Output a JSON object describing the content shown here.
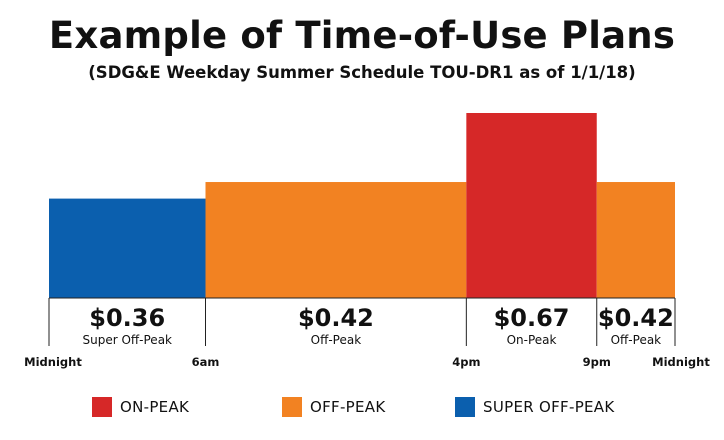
{
  "chart_data": {
    "type": "bar",
    "title": "Example of Time-of-Use Plans",
    "subtitle": "(SDG&E Weekday Summer Schedule TOU-DR1 as of 1/1/18)",
    "unit": "$/kWh",
    "ylim": [
      0,
      0.8
    ],
    "periods": [
      {
        "start_hour": 0,
        "end_hour": 6,
        "price": 0.36,
        "price_label": "$0.36",
        "name": "Super Off-Peak",
        "color": "#0B5FAE"
      },
      {
        "start_hour": 6,
        "end_hour": 16,
        "price": 0.42,
        "price_label": "$0.42",
        "name": "Off-Peak",
        "color": "#F28222"
      },
      {
        "start_hour": 16,
        "end_hour": 21,
        "price": 0.67,
        "price_label": "$0.67",
        "name": "On-Peak",
        "color": "#D62828"
      },
      {
        "start_hour": 21,
        "end_hour": 24,
        "price": 0.42,
        "price_label": "$0.42",
        "name": "Off-Peak",
        "color": "#F28222"
      }
    ],
    "tick_labels": [
      {
        "hour": 0,
        "label": "Midnight"
      },
      {
        "hour": 6,
        "label": "6am"
      },
      {
        "hour": 16,
        "label": "4pm"
      },
      {
        "hour": 21,
        "label": "9pm"
      },
      {
        "hour": 24,
        "label": "Midnight"
      }
    ],
    "grid": false,
    "legend_position": "bottom"
  },
  "legend": [
    {
      "label": "ON-PEAK",
      "color": "#D62828"
    },
    {
      "label": "OFF-PEAK",
      "color": "#F28222"
    },
    {
      "label": "SUPER OFF-PEAK",
      "color": "#0B5FAE"
    }
  ]
}
